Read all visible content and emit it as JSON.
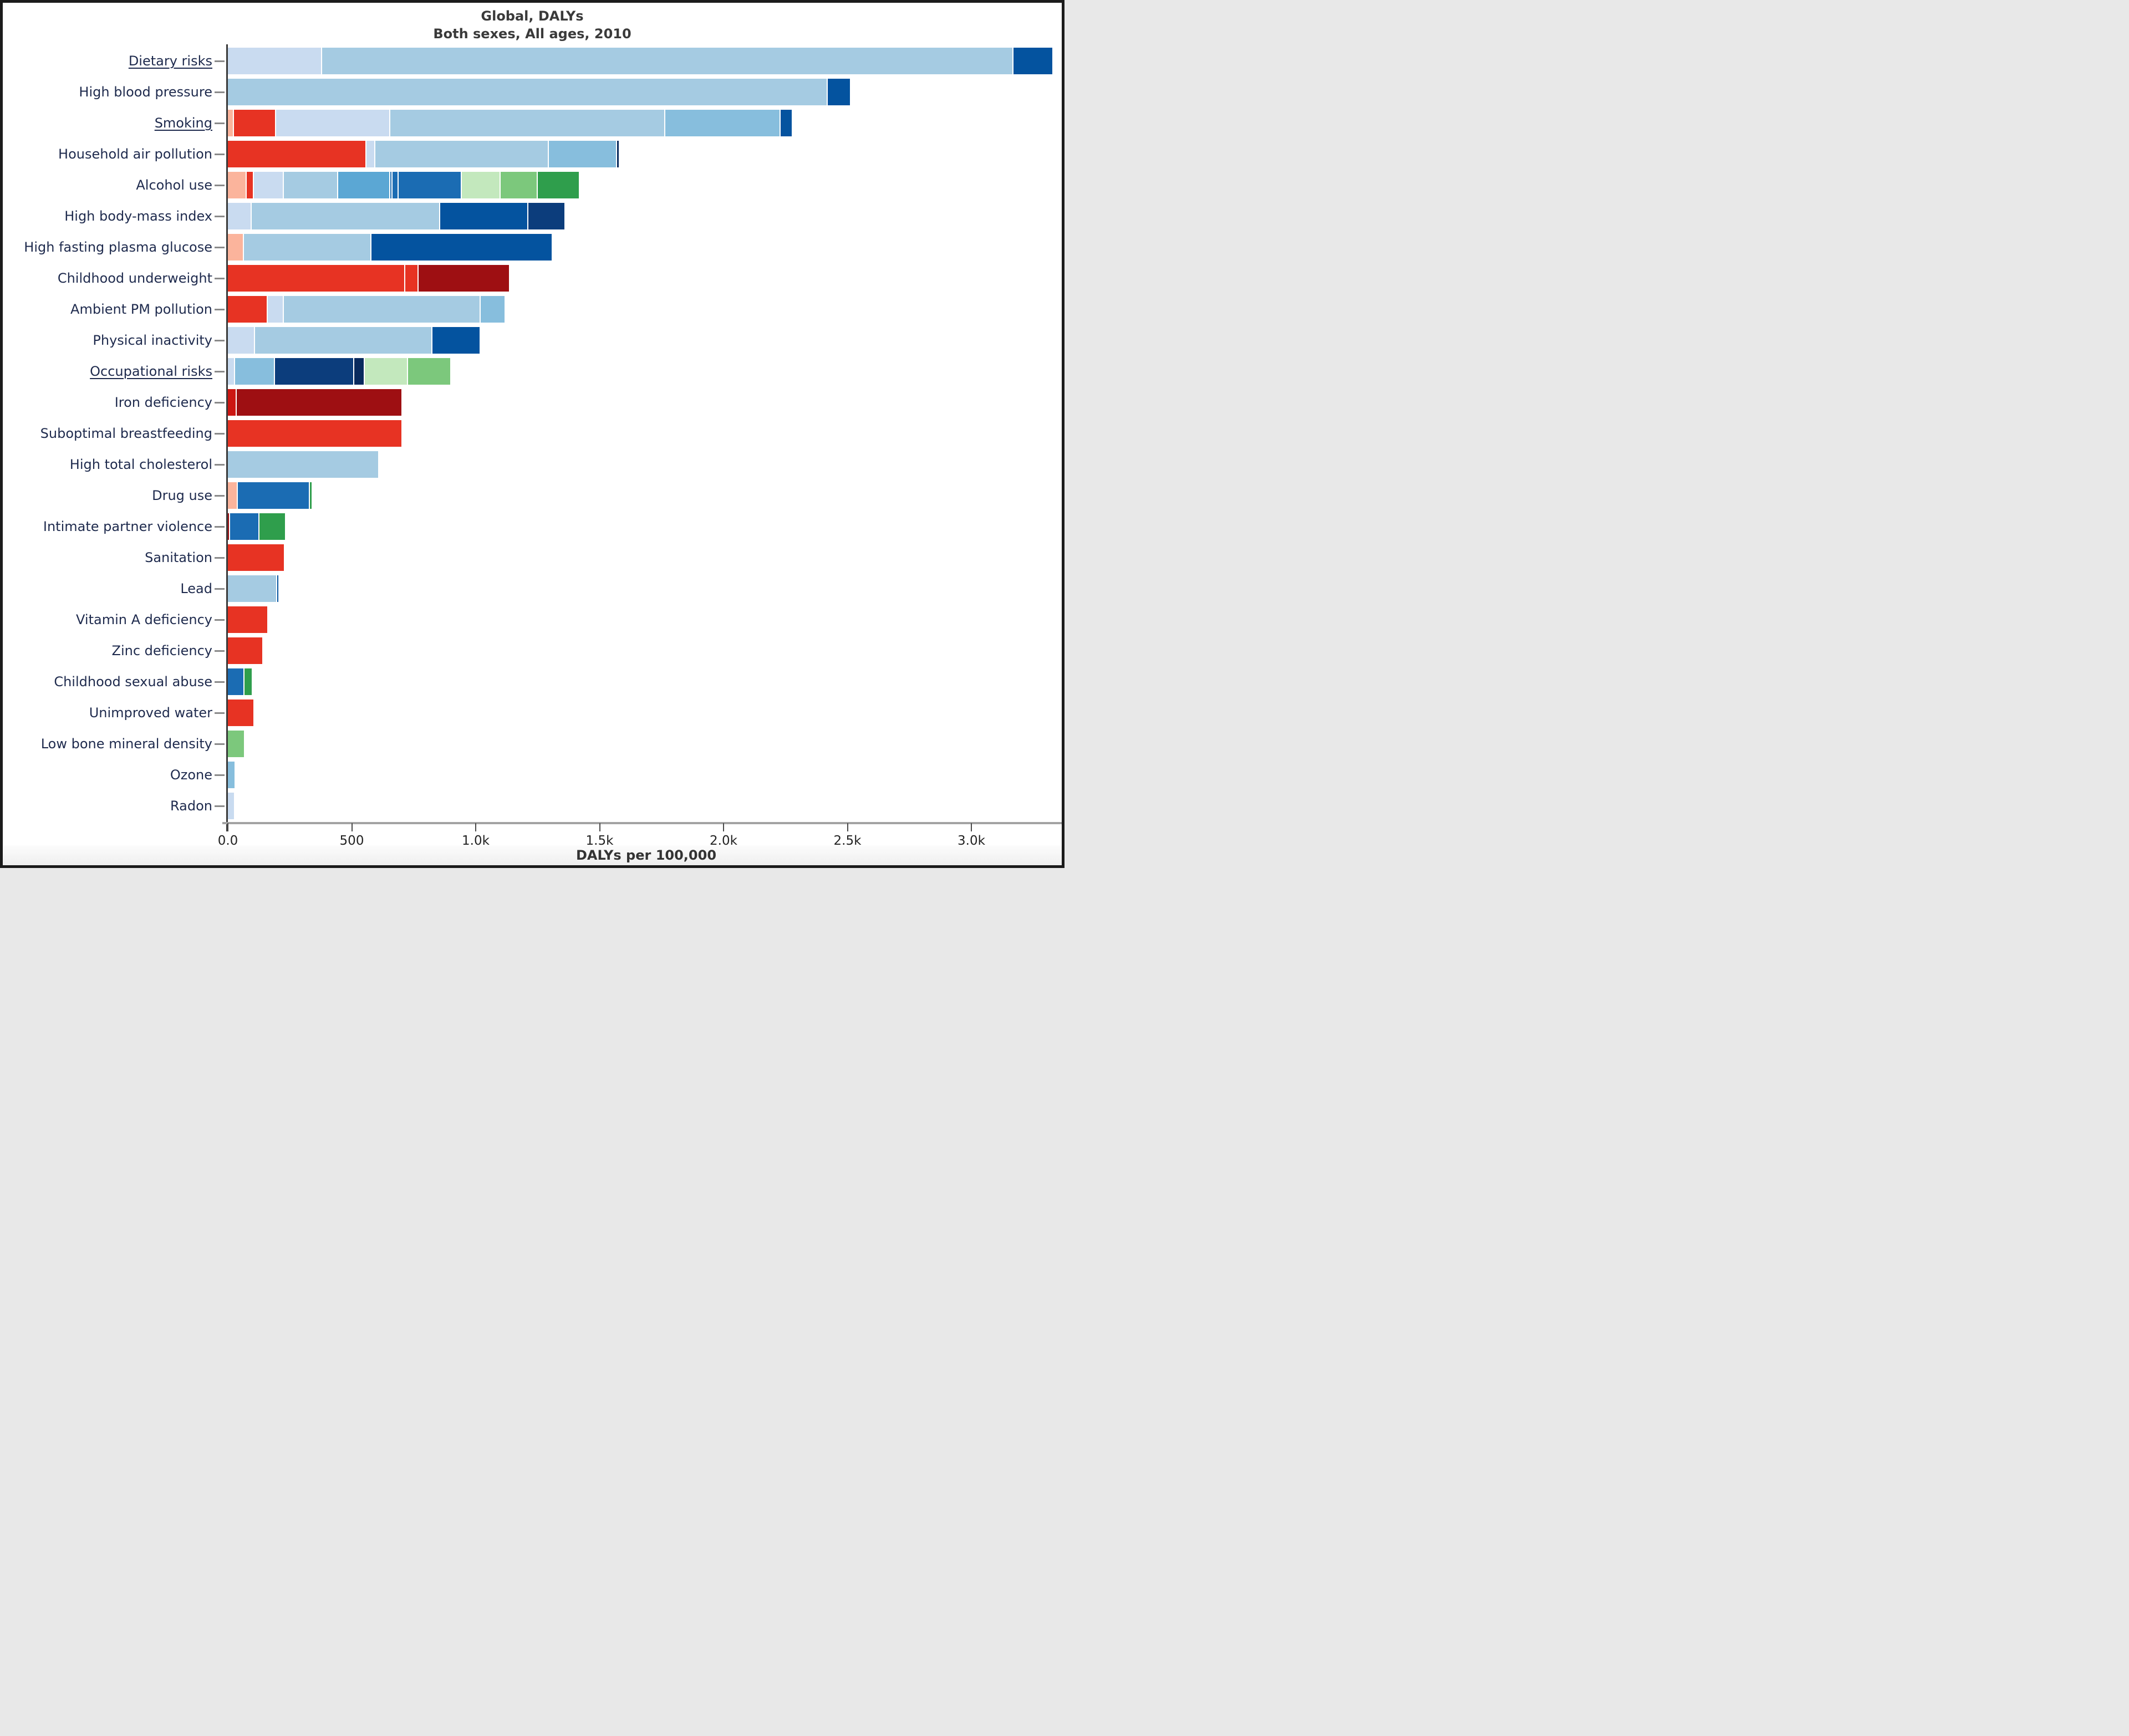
{
  "palette": {
    "paleBlue": "#c9dbf0",
    "lightBlue": "#a5cbe2",
    "medLightBlue": "#87bedd",
    "medBlue": "#5ba7d4",
    "strongBlue": "#1b6cb3",
    "darkBlue": "#04539f",
    "navy": "#0c3d7c",
    "deepNavy": "#082a5e",
    "salmon": "#fbb49c",
    "red": "#e73323",
    "midRed": "#cc1612",
    "darkRed": "#9e0f12",
    "lightGreen": "#c3e8bd",
    "medGreen": "#7cc87c",
    "darkGreen": "#2f9e4c"
  },
  "chart_data": {
    "type": "bar",
    "orientation": "horizontal-stacked",
    "title": "Global, DALYs",
    "subtitle": "Both sexes, All ages, 2010",
    "xlabel": "DALYs per 100,000",
    "ylabel": "",
    "xlim": [
      0,
      3380
    ],
    "grid": false,
    "legend": "none",
    "x_ticks": [
      {
        "value": 0,
        "label": "0.0"
      },
      {
        "value": 500,
        "label": "500"
      },
      {
        "value": 1000,
        "label": "1.0k"
      },
      {
        "value": 1500,
        "label": "1.5k"
      },
      {
        "value": 2000,
        "label": "2.0k"
      },
      {
        "value": 2500,
        "label": "2.5k"
      },
      {
        "value": 3000,
        "label": "3.0k"
      }
    ],
    "bars": [
      {
        "label": "Dietary risks",
        "underlined": true,
        "total": 3330,
        "segments": [
          {
            "color": "paleBlue",
            "value": 380
          },
          {
            "color": "lightBlue",
            "value": 2790
          },
          {
            "color": "darkBlue",
            "value": 160
          }
        ]
      },
      {
        "label": "High blood pressure",
        "underlined": false,
        "total": 2515,
        "segments": [
          {
            "color": "lightBlue",
            "value": 2420
          },
          {
            "color": "darkBlue",
            "value": 95
          }
        ]
      },
      {
        "label": "Smoking",
        "underlined": true,
        "total": 2280,
        "segments": [
          {
            "color": "salmon",
            "value": 25
          },
          {
            "color": "red",
            "value": 170
          },
          {
            "color": "paleBlue",
            "value": 460
          },
          {
            "color": "lightBlue",
            "value": 1110
          },
          {
            "color": "medLightBlue",
            "value": 465
          },
          {
            "color": "darkBlue",
            "value": 50
          }
        ]
      },
      {
        "label": "Household air pollution",
        "underlined": false,
        "total": 1582,
        "segments": [
          {
            "color": "red",
            "value": 560
          },
          {
            "color": "paleBlue",
            "value": 35
          },
          {
            "color": "lightBlue",
            "value": 700
          },
          {
            "color": "medLightBlue",
            "value": 275
          },
          {
            "color": "deepNavy",
            "value": 12
          }
        ]
      },
      {
        "label": "Alcohol use",
        "underlined": false,
        "total": 1420,
        "segments": [
          {
            "color": "salmon",
            "value": 75
          },
          {
            "color": "red",
            "value": 30
          },
          {
            "color": "paleBlue",
            "value": 120
          },
          {
            "color": "lightBlue",
            "value": 220
          },
          {
            "color": "medBlue",
            "value": 210
          },
          {
            "color": "strongBlue",
            "value": 10
          },
          {
            "color": "strongBlue",
            "value": 25
          },
          {
            "color": "strongBlue",
            "value": 255
          },
          {
            "color": "lightGreen",
            "value": 155
          },
          {
            "color": "medGreen",
            "value": 150
          },
          {
            "color": "darkGreen",
            "value": 170
          }
        ]
      },
      {
        "label": "High body-mass index",
        "underlined": false,
        "total": 1362,
        "segments": [
          {
            "color": "paleBlue",
            "value": 97
          },
          {
            "color": "lightBlue",
            "value": 760
          },
          {
            "color": "darkBlue",
            "value": 355
          },
          {
            "color": "navy",
            "value": 150
          }
        ]
      },
      {
        "label": "High fasting plasma glucose",
        "underlined": false,
        "total": 1310,
        "segments": [
          {
            "color": "salmon",
            "value": 65
          },
          {
            "color": "lightBlue",
            "value": 515
          },
          {
            "color": "darkBlue",
            "value": 730
          }
        ]
      },
      {
        "label": "Childhood underweight",
        "underlined": false,
        "total": 1138,
        "segments": [
          {
            "color": "red",
            "value": 715
          },
          {
            "color": "red",
            "value": 55
          },
          {
            "color": "darkRed",
            "value": 368
          }
        ]
      },
      {
        "label": "Ambient PM pollution",
        "underlined": false,
        "total": 1120,
        "segments": [
          {
            "color": "red",
            "value": 160
          },
          {
            "color": "paleBlue",
            "value": 65
          },
          {
            "color": "lightBlue",
            "value": 795
          },
          {
            "color": "medLightBlue",
            "value": 100
          }
        ]
      },
      {
        "label": "Physical inactivity",
        "underlined": false,
        "total": 1020,
        "segments": [
          {
            "color": "paleBlue",
            "value": 110
          },
          {
            "color": "lightBlue",
            "value": 715
          },
          {
            "color": "darkBlue",
            "value": 195
          }
        ]
      },
      {
        "label": "Occupational risks",
        "underlined": true,
        "total": 902,
        "segments": [
          {
            "color": "paleBlue",
            "value": 30
          },
          {
            "color": "medLightBlue",
            "value": 160
          },
          {
            "color": "navy",
            "value": 320
          },
          {
            "color": "deepNavy",
            "value": 42
          },
          {
            "color": "lightGreen",
            "value": 175
          },
          {
            "color": "medGreen",
            "value": 175
          }
        ]
      },
      {
        "label": "Iron deficiency",
        "underlined": false,
        "total": 705,
        "segments": [
          {
            "color": "midRed",
            "value": 35
          },
          {
            "color": "darkRed",
            "value": 670
          }
        ]
      },
      {
        "label": "Suboptimal breastfeeding",
        "underlined": false,
        "total": 705,
        "segments": [
          {
            "color": "red",
            "value": 705
          }
        ]
      },
      {
        "label": "High total cholesterol",
        "underlined": false,
        "total": 610,
        "segments": [
          {
            "color": "lightBlue",
            "value": 610
          }
        ]
      },
      {
        "label": "Drug use",
        "underlined": false,
        "total": 342,
        "segments": [
          {
            "color": "salmon",
            "value": 40
          },
          {
            "color": "strongBlue",
            "value": 290
          },
          {
            "color": "darkGreen",
            "value": 12
          }
        ]
      },
      {
        "label": "Intimate partner violence",
        "underlined": false,
        "total": 235,
        "segments": [
          {
            "color": "darkRed",
            "value": 10
          },
          {
            "color": "strongBlue",
            "value": 118
          },
          {
            "color": "darkGreen",
            "value": 107
          }
        ]
      },
      {
        "label": "Sanitation",
        "underlined": false,
        "total": 230,
        "segments": [
          {
            "color": "red",
            "value": 230
          }
        ]
      },
      {
        "label": "Lead",
        "underlined": false,
        "total": 206,
        "segments": [
          {
            "color": "lightBlue",
            "value": 198
          },
          {
            "color": "darkBlue",
            "value": 8
          }
        ]
      },
      {
        "label": "Vitamin A deficiency",
        "underlined": false,
        "total": 163,
        "segments": [
          {
            "color": "red",
            "value": 163
          }
        ]
      },
      {
        "label": "Zinc deficiency",
        "underlined": false,
        "total": 143,
        "segments": [
          {
            "color": "red",
            "value": 143
          }
        ]
      },
      {
        "label": "Childhood sexual abuse",
        "underlined": false,
        "total": 101,
        "segments": [
          {
            "color": "strongBlue",
            "value": 68
          },
          {
            "color": "darkGreen",
            "value": 33
          }
        ]
      },
      {
        "label": "Unimproved water",
        "underlined": false,
        "total": 108,
        "segments": [
          {
            "color": "red",
            "value": 108
          }
        ]
      },
      {
        "label": "Low bone mineral density",
        "underlined": false,
        "total": 69,
        "segments": [
          {
            "color": "medGreen",
            "value": 69
          }
        ]
      },
      {
        "label": "Ozone",
        "underlined": false,
        "total": 31,
        "segments": [
          {
            "color": "medLightBlue",
            "value": 31
          }
        ]
      },
      {
        "label": "Radon",
        "underlined": false,
        "total": 28,
        "segments": [
          {
            "color": "paleBlue",
            "value": 28
          }
        ]
      }
    ]
  }
}
